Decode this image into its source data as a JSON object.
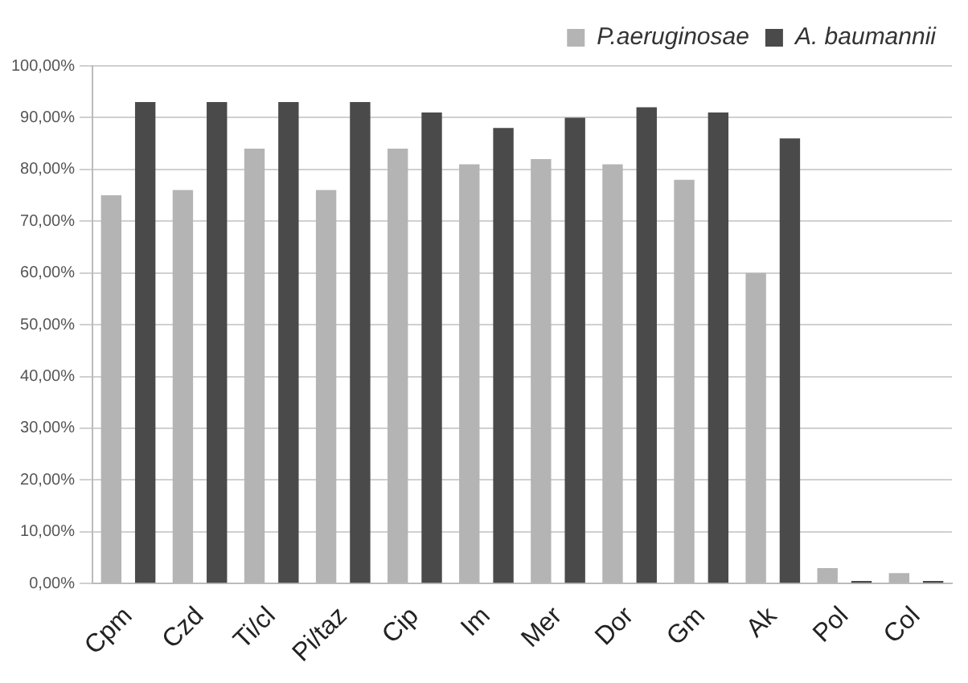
{
  "chart_data": {
    "type": "bar",
    "categories": [
      "Cpm",
      "Czd",
      "Ti/cl",
      "Pi/taz",
      "Cip",
      "Im",
      "Mer",
      "Dor",
      "Gm",
      "Ak",
      "Pol",
      "Col"
    ],
    "series": [
      {
        "name": "P.aeruginosae",
        "color": "#b4b4b4",
        "values": [
          75,
          76,
          84,
          76,
          84,
          81,
          82,
          81,
          78,
          60,
          3,
          2
        ]
      },
      {
        "name": "A. baumannii",
        "color": "#4a4a4a",
        "values": [
          93,
          93,
          93,
          93,
          91,
          88,
          90,
          92,
          91,
          86,
          0.5,
          0.5
        ]
      }
    ],
    "ylim": [
      0,
      100
    ],
    "yticks": [
      {
        "value": 0,
        "label": "0,00%"
      },
      {
        "value": 10,
        "label": "10,00%"
      },
      {
        "value": 20,
        "label": "20,00%"
      },
      {
        "value": 30,
        "label": "30,00%"
      },
      {
        "value": 40,
        "label": "40,00%"
      },
      {
        "value": 50,
        "label": "50,00%"
      },
      {
        "value": 60,
        "label": "60,00%"
      },
      {
        "value": 70,
        "label": "70,00%"
      },
      {
        "value": 80,
        "label": "80,00%"
      },
      {
        "value": 90,
        "label": "90,00%"
      },
      {
        "value": 100,
        "label": "100,00%"
      }
    ],
    "grid": "y",
    "legend": "top right"
  }
}
